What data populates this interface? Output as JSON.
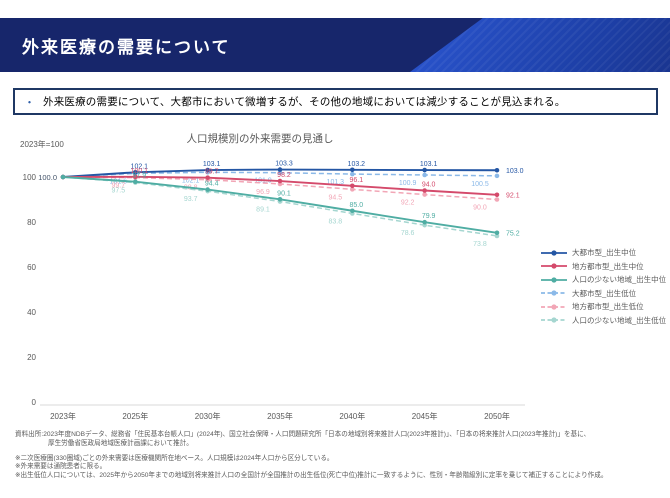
{
  "header": {
    "title": "外来医療の需要について"
  },
  "summary": {
    "bullet": "・",
    "text": "外来医療の需要について、大都市において微増するが、その他の地域においては減少することが見込まれる。"
  },
  "chart_data": {
    "type": "line",
    "title": "人口規模別の外来需要の見通し",
    "baseline_note": "2023年=100",
    "categories": [
      "2023年",
      "2025年",
      "2030年",
      "2035年",
      "2040年",
      "2045年",
      "2050年"
    ],
    "yticks": [
      0,
      20,
      40,
      60,
      80,
      100
    ],
    "ylim": [
      0,
      110
    ],
    "grid": false,
    "legend_position": "right",
    "start_label": "100.0",
    "series": [
      {
        "name": "大都市型_出生中位",
        "style": "solid",
        "color": "#2456a4",
        "values": [
          100.0,
          102.1,
          103.1,
          103.3,
          103.2,
          103.1,
          103.0
        ]
      },
      {
        "name": "地方都市型_出生中位",
        "style": "solid",
        "color": "#d44a6b",
        "values": [
          100.0,
          100.1,
          99.7,
          98.2,
          96.1,
          94.0,
          92.1
        ]
      },
      {
        "name": "人口の少ない地域_出生中位",
        "style": "solid",
        "color": "#4fada3",
        "values": [
          100.0,
          97.9,
          94.4,
          90.1,
          85.0,
          79.9,
          75.2
        ]
      },
      {
        "name": "大都市型_出生低位",
        "style": "dashed",
        "color": "#8bb9e8",
        "values": [
          100.0,
          101.6,
          102.1,
          101.9,
          101.3,
          100.9,
          100.5
        ]
      },
      {
        "name": "地方都市型_出生低位",
        "style": "dashed",
        "color": "#f2a6b6",
        "values": [
          100.0,
          99.7,
          98.8,
          96.9,
          94.5,
          92.2,
          90.0
        ]
      },
      {
        "name": "人口の少ない地域_出生低位",
        "style": "dashed",
        "color": "#a5d6d0",
        "values": [
          100.0,
          97.5,
          93.7,
          89.1,
          83.8,
          78.6,
          73.8
        ]
      }
    ]
  },
  "footer": {
    "source_line1": "資料出所:2023年度NDBデータ、総務省「住民基本台帳人口」(2024年)、国立社会保障・人口問題研究所「日本の地域別将来推計人口(2023年推計)」、「日本の将来推計人口(2023年推計)」を基に、",
    "source_line2": "厚生労働省医政局地域医療計画課において推計。",
    "note1": "※二次医療圏(330圏域)ごとの外来需要は医療機関所在地ベース。人口規模は2024年人口から区分している。",
    "note2": "※外来需要は通院患者に限る。",
    "note3": "※出生低位人口については、2025年から2050年までの地域別将来推計人口の全国計が全国推計の出生低位(死亡中位)推計に一致するように、性別・年齢階級別に定率を乗じて補正することにより作成。"
  }
}
